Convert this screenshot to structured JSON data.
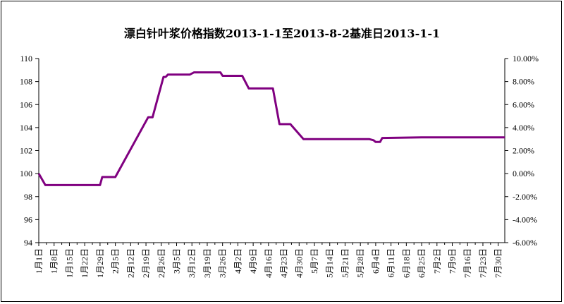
{
  "chart_data": {
    "type": "line",
    "title": "漂白针叶浆价格指数2013-1-1至2013-8-2基准日2013-1-1",
    "xlabel": "",
    "ylabel": "",
    "ylim": [
      94,
      110
    ],
    "y_ticks": [
      "110",
      "108",
      "106",
      "104",
      "102",
      "100",
      "98",
      "96",
      "94"
    ],
    "y2lim": [
      -0.06,
      0.1
    ],
    "y2_ticks": [
      "10.00%",
      "8.00%",
      "6.00%",
      "4.00%",
      "2.00%",
      "0.00%",
      "-2.00%",
      "-4.00%",
      "-6.00%"
    ],
    "x_ticks": [
      "1月1日",
      "1月8日",
      "1月15日",
      "1月22日",
      "1月29日",
      "2月5日",
      "2月12日",
      "2月19日",
      "2月26日",
      "3月5日",
      "3月12日",
      "3月19日",
      "3月26日",
      "4月2日",
      "4月9日",
      "4月16日",
      "4月23日",
      "4月30日",
      "5月7日",
      "5月14日",
      "5月21日",
      "5月28日",
      "6月4日",
      "6月11日",
      "6月18日",
      "6月25日",
      "7月2日",
      "7月9日",
      "7月16日",
      "7月23日",
      "7月30日"
    ],
    "grid": false,
    "legend": "none",
    "color": "#800080",
    "series": [
      {
        "x": [
          "2013-01-01",
          "2013-01-04",
          "2013-01-29",
          "2013-01-30",
          "2013-02-05",
          "2013-02-20",
          "2013-02-22",
          "2013-02-27",
          "2013-02-28",
          "2013-03-01",
          "2013-03-03",
          "2013-03-11",
          "2013-03-13",
          "2013-03-25",
          "2013-03-26",
          "2013-04-04",
          "2013-04-07",
          "2013-04-18",
          "2013-04-21",
          "2013-04-26",
          "2013-05-02",
          "2013-06-01",
          "2013-06-03",
          "2013-06-04",
          "2013-06-06",
          "2013-06-07",
          "2013-06-25",
          "2013-08-02"
        ],
        "y": [
          100.0,
          99.0,
          99.0,
          99.7,
          99.7,
          104.9,
          104.9,
          108.4,
          108.4,
          108.6,
          108.6,
          108.6,
          108.8,
          108.8,
          108.5,
          108.5,
          107.4,
          107.4,
          104.3,
          104.3,
          103.0,
          103.0,
          102.9,
          102.75,
          102.75,
          103.1,
          103.15,
          103.15
        ]
      }
    ]
  }
}
